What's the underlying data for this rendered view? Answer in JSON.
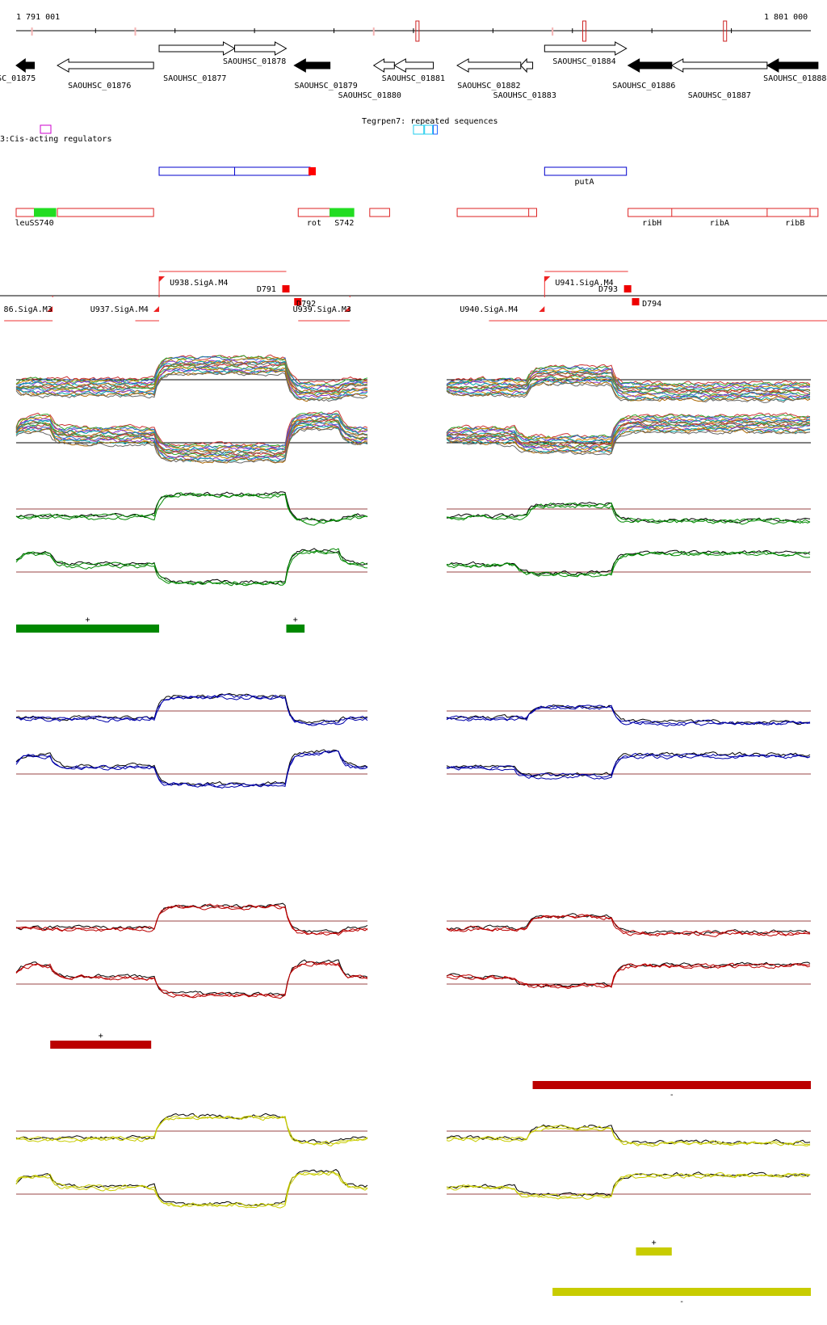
{
  "ruler": {
    "start_label": "1 791 001",
    "end_label": "1 801 000",
    "start": 1791001,
    "end": 1801000,
    "tick_interval": 1000,
    "red_marks": [
      1798150,
      1796050,
      1799920
    ],
    "pink_marks": [
      1791200,
      1792500,
      1797750,
      1795500
    ]
  },
  "genes": [
    {
      "name": "SAOUHSC_01875",
      "start": 1791001,
      "end": 1791230,
      "strand": "-",
      "filled": true,
      "label_row": 0,
      "label_at": 1790850
    },
    {
      "name": "SAOUHSC_01876",
      "start": 1791520,
      "end": 1792730,
      "strand": "-",
      "filled": false,
      "label_row": 1,
      "label_at": 1792050
    },
    {
      "name": "SAOUHSC_01877",
      "start": 1792800,
      "end": 1793750,
      "strand": "+",
      "filled": false,
      "label_row": 0,
      "label_at": 1793250
    },
    {
      "name": "SAOUHSC_01878",
      "start": 1793750,
      "end": 1794400,
      "strand": "+",
      "filled": false,
      "label_row": -1,
      "label_at": 1794000
    },
    {
      "name": "SAOUHSC_01879",
      "start": 1794500,
      "end": 1794950,
      "strand": "-",
      "filled": true,
      "label_row": 1,
      "label_at": 1794900
    },
    {
      "name": "SAOUHSC_01880",
      "start": 1795500,
      "end": 1795760,
      "strand": "-",
      "filled": false,
      "label_row": 2,
      "label_at": 1795450
    },
    {
      "name": "SAOUHSC_01881",
      "start": 1795760,
      "end": 1796250,
      "strand": "-",
      "filled": false,
      "label_row": 0,
      "label_at": 1796000
    },
    {
      "name": "SAOUHSC_01882",
      "start": 1796550,
      "end": 1797350,
      "strand": "-",
      "filled": false,
      "label_row": 1,
      "label_at": 1796950
    },
    {
      "name": "SAOUHSC_01883",
      "start": 1797350,
      "end": 1797500,
      "strand": "-",
      "filled": false,
      "label_row": 2,
      "label_at": 1797400
    },
    {
      "name": "SAOUHSC_01884",
      "start": 1797650,
      "end": 1798680,
      "strand": "+",
      "filled": false,
      "label_row": -1,
      "label_at": 1798150
    },
    {
      "name": "SAOUHSC_01886",
      "start": 1798700,
      "end": 1799250,
      "strand": "-",
      "filled": true,
      "label_row": 1,
      "label_at": 1798900
    },
    {
      "name": "SAOUHSC_01887",
      "start": 1799250,
      "end": 1800450,
      "strand": "-",
      "filled": false,
      "label_row": 2,
      "label_at": 1799850
    },
    {
      "name": "SAOUHSC_01888",
      "start": 1800450,
      "end": 1801090,
      "strand": "-",
      "filled": true,
      "label_row": 0,
      "label_at": 1800800
    }
  ],
  "cis_regulators": {
    "legend_label": "3:Cis-acting regulators",
    "repeat_label": "Tegrpen7: repeated sequences",
    "repeats": [
      {
        "start": 1796000,
        "end": 1796130,
        "color": "#22ccee"
      },
      {
        "start": 1796140,
        "end": 1796240,
        "color": "#22ccee"
      },
      {
        "start": 1796250,
        "end": 1796300,
        "color": "#2266ff"
      }
    ]
  },
  "operons": [
    {
      "start": 1792800,
      "end": 1794700,
      "color": "#0000cc",
      "divider": 1793750,
      "end_mark": true
    },
    {
      "start": 1797650,
      "end": 1798680,
      "color": "#0000cc",
      "label": "putA",
      "label_at": 1798150
    }
  ],
  "annotations": [
    {
      "start": 1791001,
      "end": 1791230,
      "color": "#dd2222"
    },
    {
      "start": 1791230,
      "end": 1791500,
      "color": "#22dd22",
      "fill": true
    },
    {
      "start": 1791520,
      "end": 1792730,
      "color": "#dd2222"
    },
    {
      "start": 1794550,
      "end": 1794950,
      "color": "#dd2222"
    },
    {
      "start": 1794950,
      "end": 1795250,
      "color": "#22dd22",
      "fill": true
    },
    {
      "start": 1795450,
      "end": 1795700,
      "color": "#dd2222"
    },
    {
      "start": 1796550,
      "end": 1797550,
      "color": "#dd2222",
      "divider": 1797450
    },
    {
      "start": 1798700,
      "end": 1801090,
      "color": "#dd2222",
      "divider": [
        1799250,
        1800450,
        1800990
      ]
    }
  ],
  "annotation_labels": [
    {
      "text": "leuSS740",
      "at": 1791230
    },
    {
      "text": "rot",
      "at": 1794750
    },
    {
      "text": "S742",
      "at": 1795130
    },
    {
      "text": "ribH",
      "at": 1799000
    },
    {
      "text": "ribA",
      "at": 1799850
    },
    {
      "text": "ribB",
      "at": 1800800
    }
  ],
  "tus": [
    {
      "text": "86.SigA.M3",
      "start": 1790850,
      "end": 1791460,
      "strand": "-",
      "label_at": 1791150
    },
    {
      "text": "U937.SigA.M4",
      "start": 1792500,
      "end": 1792800,
      "strand": "-",
      "label_at": 1792300
    },
    {
      "text": "U938.SigA.M4",
      "start": 1792800,
      "end": 1794400,
      "strand": "+",
      "label_at": 1793300
    },
    {
      "text": "D791",
      "at": 1794400,
      "strand": "+",
      "label_at": 1794150
    },
    {
      "text": "D792",
      "at": 1794550,
      "strand": "-",
      "label_at": 1794650
    },
    {
      "text": "U939.SigA.M3",
      "start": 1794550,
      "end": 1795200,
      "strand": "-",
      "label_at": 1794850
    },
    {
      "text": "U940.SigA.M4",
      "start": 1796950,
      "end": 1797650,
      "strand": "-",
      "label_at": 1796950
    },
    {
      "text": "U941.SigA.M4",
      "start": 1797650,
      "end": 1798700,
      "strand": "+",
      "label_at": 1798150
    },
    {
      "text": "D793",
      "at": 1798700,
      "strand": "+",
      "label_at": 1798450
    },
    {
      "text": "D794",
      "at": 1798800,
      "strand": "-",
      "label_at": 1799000
    }
  ],
  "tracks": [
    {
      "id": "all-conditions",
      "color": "multi"
    },
    {
      "id": "green-condition",
      "color": "#008800"
    },
    {
      "id": "blue-condition",
      "color": "#0000aa"
    },
    {
      "id": "red-condition",
      "color": "#bb0000"
    },
    {
      "id": "yellow-condition",
      "color": "#c8cc00"
    }
  ],
  "segments": [
    {
      "track": "green-condition",
      "start": 1791001,
      "end": 1792800,
      "strand": "+",
      "label": "+"
    },
    {
      "track": "green-condition",
      "start": 1794400,
      "end": 1794630,
      "strand": "+",
      "label": "+"
    },
    {
      "track": "red-condition",
      "start": 1791430,
      "end": 1792700,
      "strand": "+",
      "label": "+"
    },
    {
      "track": "red-condition",
      "start": 1797500,
      "end": 1801000,
      "strand": "-",
      "label": "-"
    },
    {
      "track": "yellow-condition",
      "start": 1798800,
      "end": 1799250,
      "strand": "+",
      "label": "+"
    },
    {
      "track": "yellow-condition",
      "start": 1797750,
      "end": 1801000,
      "strand": "-",
      "label": "-"
    }
  ]
}
